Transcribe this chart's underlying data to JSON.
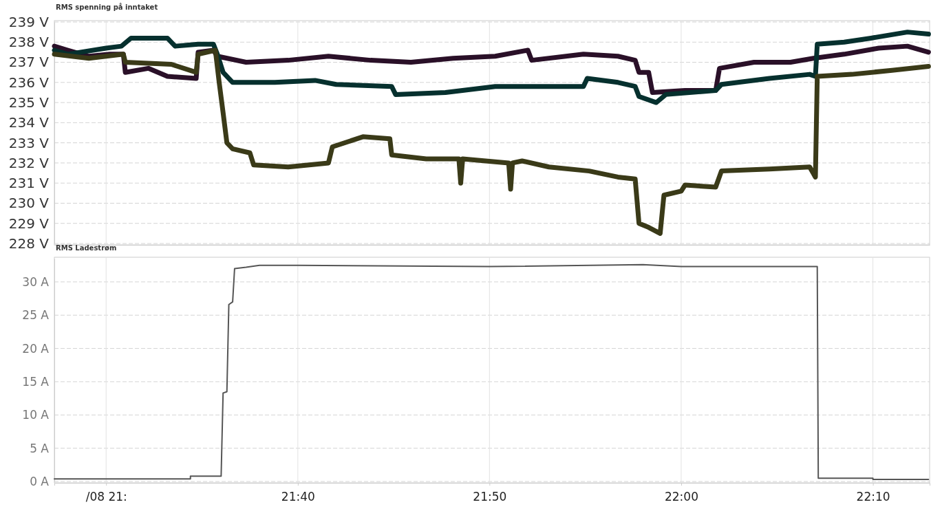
{
  "chart_data": [
    {
      "type": "line",
      "title": "RMS spenning på inntaket",
      "xlim": [
        21.455,
        22.216
      ],
      "xticks": [
        {
          "value": 21.5,
          "label": null
        },
        {
          "value": 21.6667,
          "label": null
        },
        {
          "value": 21.8333,
          "label": null
        },
        {
          "value": 22.0,
          "label": null
        },
        {
          "value": 22.1667,
          "label": null
        }
      ],
      "ylim": [
        228,
        239
      ],
      "yticks": [
        {
          "value": 228,
          "label": "228 V"
        },
        {
          "value": 229,
          "label": "229 V"
        },
        {
          "value": 230,
          "label": "230 V"
        },
        {
          "value": 231,
          "label": "231 V"
        },
        {
          "value": 232,
          "label": "232 V"
        },
        {
          "value": 233,
          "label": "233 V"
        },
        {
          "value": 234,
          "label": "234 V"
        },
        {
          "value": 235,
          "label": "235 V"
        },
        {
          "value": 236,
          "label": "236 V"
        },
        {
          "value": 237,
          "label": "237 V"
        },
        {
          "value": 238,
          "label": "238 V"
        },
        {
          "value": 239,
          "label": "239 V"
        }
      ],
      "grid": true,
      "tick_labels": "y",
      "series": [
        {
          "color": "#2a1028",
          "x": [
            21.455,
            21.4667,
            21.485,
            21.5033,
            21.515,
            21.5167,
            21.5367,
            21.5533,
            21.5783,
            21.58,
            21.5933,
            21.5967,
            21.6217,
            21.6583,
            21.6933,
            21.73,
            21.765,
            21.8017,
            21.8383,
            21.8667,
            21.87,
            21.915,
            21.945,
            21.96,
            21.9633,
            21.9717,
            21.975,
            22.0033,
            22.03,
            22.0333,
            22.0633,
            22.095,
            22.115,
            22.1417,
            22.1717,
            22.1967,
            22.215
          ],
          "values": [
            237.8,
            237.6,
            237.3,
            237.4,
            237.4,
            236.5,
            236.7,
            236.3,
            236.2,
            237.5,
            237.6,
            237.3,
            237.0,
            237.1,
            237.3,
            237.1,
            237.0,
            237.2,
            237.3,
            237.6,
            237.1,
            237.4,
            237.3,
            237.1,
            236.5,
            236.5,
            235.5,
            235.6,
            235.6,
            236.7,
            237.0,
            237.0,
            237.2,
            237.4,
            237.7,
            237.8,
            237.5
          ]
        },
        {
          "color": "#06302e",
          "x": [
            21.455,
            21.4667,
            21.5,
            21.5133,
            21.5217,
            21.5383,
            21.5533,
            21.56,
            21.58,
            21.5933,
            21.5967,
            21.6017,
            21.61,
            21.6467,
            21.6817,
            21.7,
            21.7483,
            21.7517,
            21.795,
            21.8383,
            21.885,
            21.915,
            21.9183,
            21.945,
            21.96,
            21.9633,
            21.9783,
            21.9867,
            22.03,
            22.035,
            22.0767,
            22.1117,
            22.1167,
            22.1183,
            22.1417,
            22.165,
            22.1967,
            22.215
          ],
          "values": [
            237.6,
            237.4,
            237.7,
            237.8,
            238.2,
            238.2,
            238.2,
            237.8,
            237.9,
            237.9,
            237.4,
            236.5,
            236.0,
            236.0,
            236.1,
            235.9,
            235.8,
            235.4,
            235.5,
            235.8,
            235.8,
            235.8,
            236.2,
            236.0,
            235.8,
            235.3,
            235.0,
            235.4,
            235.6,
            235.9,
            236.2,
            236.4,
            236.3,
            237.9,
            238.0,
            238.2,
            238.5,
            238.4
          ]
        },
        {
          "color": "#3a3a18",
          "x": [
            21.455,
            21.485,
            21.515,
            21.5167,
            21.5567,
            21.5783,
            21.58,
            21.595,
            21.5983,
            21.6017,
            21.605,
            21.61,
            21.625,
            21.6283,
            21.6583,
            21.6933,
            21.6967,
            21.7233,
            21.7467,
            21.7483,
            21.7783,
            21.8067,
            21.8083,
            21.81,
            21.85,
            21.8517,
            21.8533,
            21.8617,
            21.885,
            21.92,
            21.945,
            21.96,
            21.9633,
            21.9717,
            21.9817,
            21.985,
            22.0,
            22.0033,
            22.03,
            22.035,
            22.0767,
            22.1117,
            22.1167,
            22.1183,
            22.1483,
            22.1833,
            22.215
          ],
          "values": [
            237.4,
            237.2,
            237.4,
            237.0,
            236.9,
            236.5,
            237.4,
            237.6,
            236.0,
            234.5,
            233.0,
            232.7,
            232.5,
            231.9,
            231.8,
            232.0,
            232.8,
            233.3,
            233.2,
            232.4,
            232.2,
            232.2,
            231.0,
            232.2,
            232.0,
            230.7,
            232.0,
            232.1,
            231.8,
            231.6,
            231.3,
            231.2,
            229.0,
            228.8,
            228.5,
            230.4,
            230.6,
            230.9,
            230.8,
            231.6,
            231.7,
            231.8,
            231.3,
            236.3,
            236.4,
            236.6,
            236.8
          ]
        }
      ]
    },
    {
      "type": "line",
      "title": "RMS Ladestrøm",
      "xlim": [
        21.455,
        22.216
      ],
      "xticks": [
        {
          "value": 21.5,
          "label": "/08 21:"
        },
        {
          "value": 21.6667,
          "label": "21:40"
        },
        {
          "value": 21.8333,
          "label": "21:50"
        },
        {
          "value": 22.0,
          "label": "22:00"
        },
        {
          "value": 22.1667,
          "label": "22:10"
        }
      ],
      "ylim": [
        0,
        33.5
      ],
      "yticks": [
        {
          "value": 0,
          "label": "0 A"
        },
        {
          "value": 5,
          "label": "5 A"
        },
        {
          "value": 10,
          "label": "10 A"
        },
        {
          "value": 15,
          "label": "15 A"
        },
        {
          "value": 20,
          "label": "20 A"
        },
        {
          "value": 25,
          "label": "25 A"
        },
        {
          "value": 30,
          "label": "30 A"
        }
      ],
      "grid": true,
      "series": [
        {
          "color": "#555555",
          "x": [
            21.455,
            21.5733,
            21.5733,
            21.6,
            21.6017,
            21.605,
            21.6067,
            21.61,
            21.6117,
            21.6217,
            21.6333,
            21.6667,
            21.8333,
            21.9667,
            22.0,
            22.1183,
            22.1192,
            22.1667,
            22.1667,
            22.215
          ],
          "values": [
            0.4,
            0.4,
            0.8,
            0.8,
            13.3,
            13.5,
            26.6,
            27.0,
            32.0,
            32.2,
            32.5,
            32.5,
            32.3,
            32.6,
            32.3,
            32.3,
            0.5,
            0.5,
            0.3,
            0.3
          ]
        }
      ]
    }
  ]
}
